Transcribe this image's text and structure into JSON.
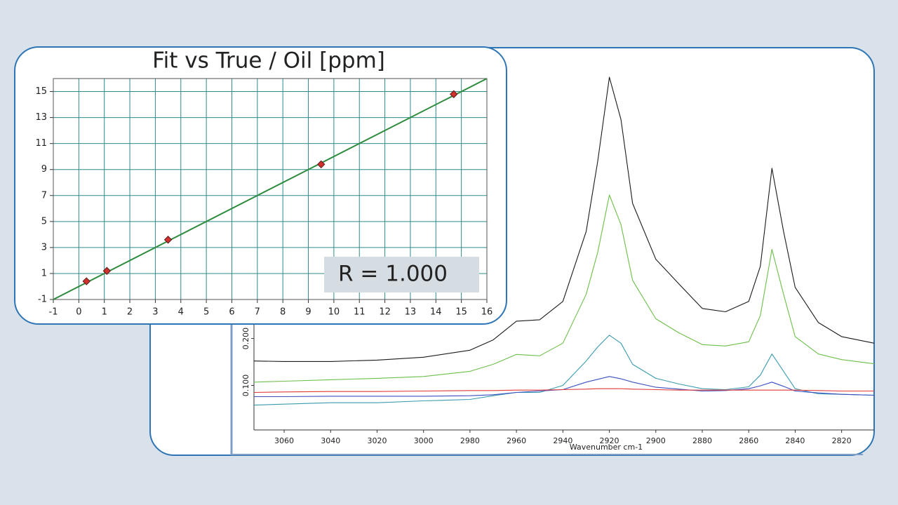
{
  "chart_data": [
    {
      "type": "scatter",
      "title": "Fit vs True / Oil [ppm]",
      "x": [
        0.3,
        1.1,
        3.5,
        9.5,
        14.7
      ],
      "values": [
        0.4,
        1.2,
        3.6,
        9.4,
        14.8
      ],
      "color": "#d0312d",
      "fit_line": {
        "x": [
          -1,
          16
        ],
        "values": [
          -1,
          16
        ],
        "color": "#2e8b3e"
      },
      "annotation": "R = 1.000",
      "xlim": [
        -1,
        16
      ],
      "ylim": [
        -1,
        16
      ],
      "xticks": [
        -1,
        0,
        1,
        2,
        3,
        4,
        5,
        6,
        7,
        8,
        9,
        10,
        11,
        12,
        13,
        14,
        15,
        16
      ],
      "yticks": [
        -1,
        1,
        3,
        5,
        7,
        9,
        11,
        13,
        15
      ],
      "grid": true
    },
    {
      "type": "line",
      "x_label": "Wavenumber cm-1",
      "x": [
        3073,
        3060,
        3040,
        3020,
        3000,
        2980,
        2970,
        2960,
        2950,
        2940,
        2930,
        2925,
        2920,
        2915,
        2910,
        2900,
        2890,
        2880,
        2870,
        2860,
        2855,
        2850,
        2845,
        2840,
        2830,
        2820,
        2806
      ],
      "series": [
        {
          "color": "#1a1a1a",
          "values": [
            0.152,
            0.151,
            0.151,
            0.154,
            0.16,
            0.175,
            0.197,
            0.237,
            0.24,
            0.279,
            0.428,
            0.578,
            0.757,
            0.667,
            0.488,
            0.369,
            0.316,
            0.264,
            0.257,
            0.279,
            0.354,
            0.563,
            0.428,
            0.309,
            0.234,
            0.204,
            0.19
          ]
        },
        {
          "color": "#6cbf4a",
          "values": [
            0.107,
            0.109,
            0.112,
            0.115,
            0.119,
            0.13,
            0.145,
            0.166,
            0.163,
            0.19,
            0.294,
            0.384,
            0.506,
            0.443,
            0.324,
            0.242,
            0.212,
            0.187,
            0.184,
            0.193,
            0.249,
            0.39,
            0.294,
            0.204,
            0.167,
            0.155,
            0.146
          ]
        },
        {
          "color": "#3a9bb0",
          "values": [
            0.058,
            0.06,
            0.063,
            0.063,
            0.067,
            0.07,
            0.078,
            0.085,
            0.085,
            0.1,
            0.152,
            0.182,
            0.207,
            0.19,
            0.145,
            0.115,
            0.103,
            0.093,
            0.091,
            0.097,
            0.122,
            0.167,
            0.13,
            0.093,
            0.082,
            0.081,
            0.079
          ]
        },
        {
          "color": "#3a4fc0",
          "values": [
            0.076,
            0.076,
            0.077,
            0.077,
            0.077,
            0.078,
            0.08,
            0.085,
            0.088,
            0.091,
            0.107,
            0.113,
            0.119,
            0.114,
            0.107,
            0.096,
            0.092,
            0.088,
            0.089,
            0.093,
            0.099,
            0.107,
            0.098,
            0.088,
            0.084,
            0.081,
            0.079
          ]
        },
        {
          "color": "#e03a3a",
          "values": [
            0.085,
            0.086,
            0.087,
            0.087,
            0.088,
            0.089,
            0.089,
            0.09,
            0.09,
            0.091,
            0.092,
            0.093,
            0.093,
            0.093,
            0.092,
            0.091,
            0.09,
            0.09,
            0.09,
            0.09,
            0.09,
            0.09,
            0.09,
            0.09,
            0.089,
            0.088,
            0.088
          ]
        }
      ],
      "xlim": [
        3073,
        2806
      ],
      "ylim": [
        0.005,
        0.82
      ],
      "xticks": [
        3060,
        3040,
        3020,
        3000,
        2980,
        2960,
        2940,
        2920,
        2900,
        2880,
        2860,
        2840,
        2820
      ],
      "yticks": [
        {
          "value": 0.1,
          "label": "0.100"
        },
        {
          "value": 0.2,
          "label": "0.200"
        }
      ]
    }
  ]
}
